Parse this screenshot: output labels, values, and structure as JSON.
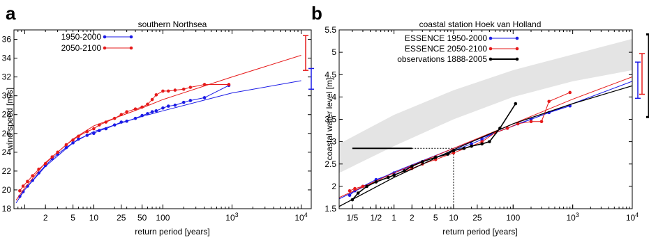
{
  "chart_data": [
    {
      "panel_label": "a",
      "type": "scatter",
      "title": "southern Northsea",
      "xlabel": "return period [years]",
      "ylabel": "wind speed [m/s]",
      "x_scale": "log",
      "xlim": [
        0.7,
        14000
      ],
      "ylim": [
        18,
        37
      ],
      "x_ticks": [
        {
          "value": 2,
          "label": "2"
        },
        {
          "value": 5,
          "label": "5"
        },
        {
          "value": 10,
          "label": "10"
        },
        {
          "value": 25,
          "label": "25"
        },
        {
          "value": 50,
          "label": "50"
        },
        {
          "value": 100,
          "label": "100"
        },
        {
          "value": 1000,
          "label": "10",
          "sup": "3"
        },
        {
          "value": 10000,
          "label": "10",
          "sup": "4"
        }
      ],
      "y_ticks": [
        18,
        20,
        22,
        24,
        26,
        28,
        30,
        32,
        34,
        36
      ],
      "legend_position": "top-left",
      "series": [
        {
          "name": "1950-2000",
          "color": "#1a1ae6",
          "points": [
            [
              0.85,
              19.3
            ],
            [
              0.95,
              19.8
            ],
            [
              1.1,
              20.4
            ],
            [
              1.3,
              21.0
            ],
            [
              1.6,
              21.8
            ],
            [
              2,
              22.6
            ],
            [
              2.5,
              23.3
            ],
            [
              3,
              23.8
            ],
            [
              4,
              24.5
            ],
            [
              5,
              25.0
            ],
            [
              6,
              25.4
            ],
            [
              8,
              25.8
            ],
            [
              10,
              26.0
            ],
            [
              12,
              26.3
            ],
            [
              15,
              26.5
            ],
            [
              20,
              26.9
            ],
            [
              25,
              27.2
            ],
            [
              30,
              27.3
            ],
            [
              40,
              27.6
            ],
            [
              50,
              27.9
            ],
            [
              60,
              28.1
            ],
            [
              70,
              28.3
            ],
            [
              80,
              28.4
            ],
            [
              100,
              28.7
            ],
            [
              120,
              28.9
            ],
            [
              150,
              29.0
            ],
            [
              200,
              29.3
            ],
            [
              250,
              29.5
            ],
            [
              400,
              29.8
            ],
            [
              900,
              31.1
            ]
          ],
          "fit": [
            [
              0.75,
              18.6
            ],
            [
              1,
              20.0
            ],
            [
              2,
              22.5
            ],
            [
              5,
              25.0
            ],
            [
              10,
              26.2
            ],
            [
              50,
              27.8
            ],
            [
              100,
              28.4
            ],
            [
              1000,
              30.3
            ],
            [
              10000,
              31.6
            ]
          ],
          "error_bar": {
            "x": 10000,
            "low": 30.7,
            "high": 32.9
          }
        },
        {
          "name": "2050-2100",
          "color": "#e61a1a",
          "points": [
            [
              0.85,
              19.9
            ],
            [
              0.95,
              20.4
            ],
            [
              1.1,
              20.9
            ],
            [
              1.3,
              21.5
            ],
            [
              1.6,
              22.2
            ],
            [
              2,
              22.8
            ],
            [
              2.5,
              23.5
            ],
            [
              3,
              24.0
            ],
            [
              4,
              24.8
            ],
            [
              5,
              25.3
            ],
            [
              6,
              25.7
            ],
            [
              8,
              26.2
            ],
            [
              10,
              26.5
            ],
            [
              12,
              26.9
            ],
            [
              15,
              27.2
            ],
            [
              20,
              27.6
            ],
            [
              25,
              28.0
            ],
            [
              30,
              28.3
            ],
            [
              40,
              28.6
            ],
            [
              50,
              28.8
            ],
            [
              60,
              29.1
            ],
            [
              70,
              29.6
            ],
            [
              80,
              30.1
            ],
            [
              100,
              30.5
            ],
            [
              120,
              30.5
            ],
            [
              150,
              30.6
            ],
            [
              200,
              30.7
            ],
            [
              250,
              30.9
            ],
            [
              400,
              31.2
            ],
            [
              900,
              31.2
            ]
          ],
          "fit": [
            [
              0.75,
              18.9
            ],
            [
              1,
              20.2
            ],
            [
              2,
              22.9
            ],
            [
              5,
              25.4
            ],
            [
              10,
              26.8
            ],
            [
              50,
              28.7
            ],
            [
              100,
              29.6
            ],
            [
              1000,
              32.0
            ],
            [
              10000,
              34.3
            ]
          ],
          "error_bar": {
            "x": 9000,
            "low": 32.7,
            "high": 36.4
          }
        }
      ]
    },
    {
      "panel_label": "b",
      "type": "scatter",
      "title": "coastal station Hoek van Holland",
      "xlabel": "return period [years]",
      "ylabel": "coastal water level [m]",
      "x_scale": "log",
      "xlim": [
        0.12,
        10000
      ],
      "ylim": [
        1.5,
        5.5
      ],
      "x_ticks": [
        {
          "value": 0.2,
          "label": "1/5"
        },
        {
          "value": 0.5,
          "label": "1/2"
        },
        {
          "value": 1,
          "label": "1"
        },
        {
          "value": 2,
          "label": "2"
        },
        {
          "value": 5,
          "label": "5"
        },
        {
          "value": 10,
          "label": "10"
        },
        {
          "value": 25,
          "label": "25"
        },
        {
          "value": 100,
          "label": "100"
        },
        {
          "value": 1000,
          "label": "10",
          "sup": "3"
        },
        {
          "value": 10000,
          "label": "10",
          "sup": "4"
        }
      ],
      "y_ticks": [
        1.5,
        2,
        2.5,
        3,
        3.5,
        4,
        4.5,
        5,
        5.5
      ],
      "legend_position": "top-left",
      "band": {
        "lower": [
          [
            0.12,
            2.3
          ],
          [
            1,
            2.9
          ],
          [
            10,
            3.5
          ],
          [
            100,
            4.0
          ],
          [
            1000,
            4.35
          ],
          [
            10000,
            4.6
          ]
        ],
        "upper": [
          [
            0.12,
            2.95
          ],
          [
            1,
            3.6
          ],
          [
            10,
            4.15
          ],
          [
            100,
            4.6
          ],
          [
            1000,
            4.95
          ],
          [
            10000,
            5.3
          ]
        ]
      },
      "reference_lines": {
        "level": 2.85,
        "x_start": 0.2,
        "x_mark": 2,
        "x_dotted_end": 10
      },
      "series": [
        {
          "name": "ESSENCE 1950-2000",
          "color": "#1a1ae6",
          "points": [
            [
              0.18,
              1.8
            ],
            [
              0.22,
              1.9
            ],
            [
              0.3,
              2.0
            ],
            [
              0.5,
              2.15
            ],
            [
              1,
              2.3
            ],
            [
              2,
              2.45
            ],
            [
              3,
              2.55
            ],
            [
              5,
              2.65
            ],
            [
              10,
              2.8
            ],
            [
              20,
              2.95
            ],
            [
              30,
              3.05
            ],
            [
              50,
              3.2
            ],
            [
              80,
              3.3
            ],
            [
              120,
              3.4
            ],
            [
              200,
              3.5
            ],
            [
              400,
              3.65
            ],
            [
              900,
              3.8
            ]
          ],
          "fit": [
            [
              0.12,
              1.72
            ],
            [
              1,
              2.32
            ],
            [
              10,
              2.85
            ],
            [
              100,
              3.35
            ],
            [
              1000,
              3.85
            ],
            [
              10000,
              4.35
            ]
          ],
          "error_bar": {
            "x": 10000,
            "low": 3.97,
            "high": 4.78
          }
        },
        {
          "name": "ESSENCE 2050-2100",
          "color": "#e61a1a",
          "points": [
            [
              0.18,
              1.9
            ],
            [
              0.22,
              1.95
            ],
            [
              0.3,
              2.0
            ],
            [
              0.5,
              2.1
            ],
            [
              1,
              2.25
            ],
            [
              2,
              2.4
            ],
            [
              3,
              2.5
            ],
            [
              5,
              2.6
            ],
            [
              10,
              2.75
            ],
            [
              20,
              2.9
            ],
            [
              30,
              3.0
            ],
            [
              50,
              3.2
            ],
            [
              80,
              3.3
            ],
            [
              120,
              3.4
            ],
            [
              200,
              3.45
            ],
            [
              300,
              3.45
            ],
            [
              400,
              3.9
            ],
            [
              900,
              4.1
            ]
          ],
          "fit": [
            [
              0.12,
              1.75
            ],
            [
              1,
              2.3
            ],
            [
              10,
              2.85
            ],
            [
              100,
              3.4
            ],
            [
              1000,
              3.95
            ],
            [
              10000,
              4.45
            ]
          ],
          "error_bar": {
            "x": 12000,
            "low": 4.06,
            "high": 4.97
          }
        },
        {
          "name": "observations 1888-2005",
          "color": "#000000",
          "points": [
            [
              0.2,
              1.7
            ],
            [
              0.25,
              1.85
            ],
            [
              0.35,
              2.0
            ],
            [
              0.5,
              2.1
            ],
            [
              0.8,
              2.2
            ],
            [
              1,
              2.25
            ],
            [
              1.5,
              2.35
            ],
            [
              2,
              2.45
            ],
            [
              3,
              2.55
            ],
            [
              5,
              2.65
            ],
            [
              8,
              2.72
            ],
            [
              10,
              2.8
            ],
            [
              15,
              2.85
            ],
            [
              20,
              2.9
            ],
            [
              30,
              2.95
            ],
            [
              40,
              3.0
            ],
            [
              60,
              3.3
            ],
            [
              110,
              3.85
            ]
          ],
          "fit": [
            [
              0.12,
              1.55
            ],
            [
              1,
              2.2
            ],
            [
              10,
              2.82
            ],
            [
              100,
              3.4
            ],
            [
              1000,
              3.85
            ],
            [
              10000,
              4.25
            ]
          ],
          "error_bar": {
            "x": 14000,
            "low": 3.55,
            "high": 5.4
          }
        }
      ]
    }
  ]
}
